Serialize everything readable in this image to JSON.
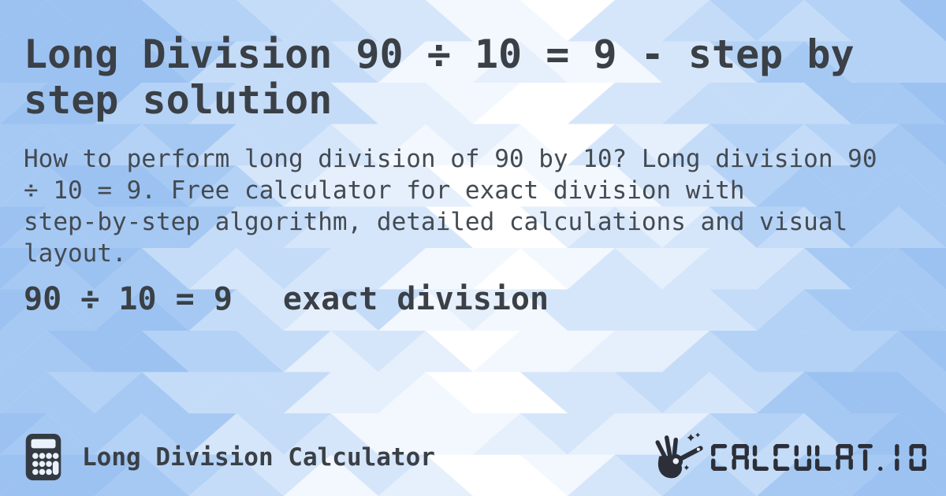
{
  "header": {
    "title": "Long Division 90 ÷ 10 = 9 - step by\nstep solution"
  },
  "description": {
    "text": "How to perform long division of 90 by 10? Long division 90\n÷ 10 = 9. Free calculator for exact division with\nstep-by-step algorithm, detailed calculations and visual\nlayout."
  },
  "result": {
    "equation": "90 ÷ 10 = 9",
    "label": "exact division"
  },
  "footer": {
    "app_name": "Long Division Calculator",
    "brand": "CALCULAT.IO"
  },
  "colors": {
    "text_primary": "#3a4046",
    "text_secondary": "#434a52",
    "logo_ink": "#2c2f38",
    "icon_ink": "#343a42",
    "icon_hole": "#e9f2fc",
    "background_palette": [
      "#ffffff",
      "#f3f8fe",
      "#e6effc",
      "#d6e6fa",
      "#c5dcf8",
      "#b4d2f6",
      "#a6c9f3",
      "#9cc2f1"
    ]
  }
}
